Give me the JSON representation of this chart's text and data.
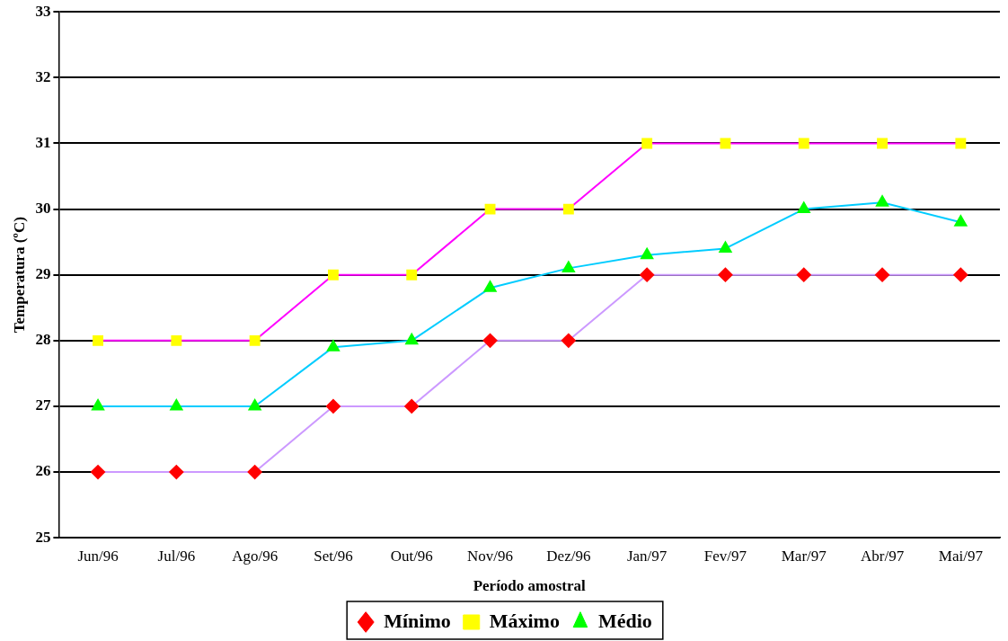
{
  "chart_data": {
    "type": "line",
    "xlabel": "Período amostral",
    "ylabel": "Temperatura (ºC)",
    "categories": [
      "Jun/96",
      "Jul/96",
      "Ago/96",
      "Set/96",
      "Out/96",
      "Nov/96",
      "Dez/96",
      "Jan/97",
      "Fev/97",
      "Mar/97",
      "Abr/97",
      "Mai/97"
    ],
    "series": [
      {
        "name": "Mínimo",
        "color": "#cc99ff",
        "marker": "diamond",
        "colors": [
          "#ff0000",
          "#ff0000",
          "#ff0000",
          "#ff0000",
          "#ff0000",
          "#ff0000",
          "#ff0000",
          "#ff0000",
          "#ff0000",
          "#ff0000",
          "#ff0000",
          "#ff0000"
        ],
        "values": [
          26,
          26,
          26,
          27,
          27,
          28,
          28,
          29,
          29,
          29,
          29,
          29
        ]
      },
      {
        "name": "Máximo",
        "color": "#ff00ff",
        "marker": "square",
        "colors": [
          "#ffff00",
          "#ffff00",
          "#ffff00",
          "#ffff00",
          "#ffff00",
          "#ffff00",
          "#ffff00",
          "#ffff00",
          "#ffff00",
          "#ffff00",
          "#ffff00",
          "#ffff00"
        ],
        "values": [
          28,
          28,
          28,
          29,
          29,
          30,
          30,
          31,
          31,
          31,
          31,
          31
        ]
      },
      {
        "name": "Médio",
        "color": "#00ccff",
        "marker": "triangle",
        "colors": [
          "#00ff00",
          "#00ff00",
          "#00ff00",
          "#00ff00",
          "#00ff00",
          "#00ff00",
          "#00ff00",
          "#00ff00",
          "#00ff00",
          "#00ff00",
          "#00ff00",
          "#00ff00"
        ],
        "values": [
          27,
          27,
          27,
          27.9,
          28,
          28.8,
          29.1,
          29.3,
          29.4,
          30,
          30.1,
          29.8
        ]
      }
    ],
    "ylim": [
      25,
      33
    ],
    "yticks": [
      25,
      26,
      27,
      28,
      29,
      30,
      31,
      32,
      33
    ],
    "grid": "y",
    "legend": "bottom",
    "line_style": "solid"
  }
}
